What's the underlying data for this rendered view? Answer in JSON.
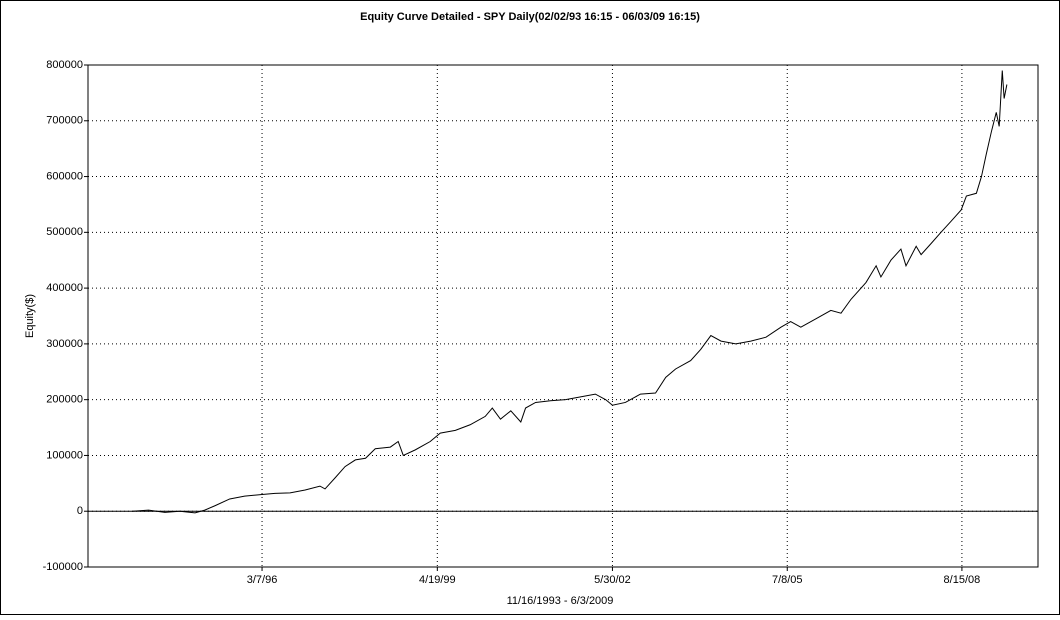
{
  "chart_data": {
    "type": "line",
    "title": "Equity Curve Detailed - SPY Daily(02/02/93 16:15 - 06/03/09 16:15)",
    "x_label": "11/16/1993 - 6/3/2009",
    "y_label": "Equity($)",
    "color": "#000000",
    "grid": true,
    "xlim": [
      "1993-02-01",
      "2009-12-22"
    ],
    "xticks": [
      {
        "value": "1996-03-07",
        "label": "3/7/96"
      },
      {
        "value": "1999-04-19",
        "label": "4/19/99"
      },
      {
        "value": "2002-05-30",
        "label": "5/30/02"
      },
      {
        "value": "2005-07-08",
        "label": "7/8/05"
      },
      {
        "value": "2008-08-15",
        "label": "8/15/08"
      }
    ],
    "ylim": [
      -100000,
      800000
    ],
    "yticks": [
      -100000,
      0,
      100000,
      200000,
      300000,
      400000,
      500000,
      600000,
      700000,
      800000
    ],
    "x": [
      "1993-11-16",
      "1994-03-01",
      "1994-06-15",
      "1994-09-20",
      "1994-12-28",
      "1995-03-01",
      "1995-05-08",
      "1995-08-10",
      "1995-11-15",
      "1996-03-07",
      "1996-05-30",
      "1996-09-05",
      "1996-12-12",
      "1997-03-18",
      "1997-04-20",
      "1997-06-25",
      "1997-08-28",
      "1997-11-03",
      "1998-01-08",
      "1998-03-12",
      "1998-06-18",
      "1998-08-08",
      "1998-09-10",
      "1998-11-27",
      "1999-03-04",
      "1999-05-08",
      "1999-08-14",
      "1999-11-18",
      "2000-02-24",
      "2000-04-10",
      "2000-06-02",
      "2000-08-08",
      "2000-10-12",
      "2000-11-12",
      "2001-01-16",
      "2001-04-22",
      "2001-07-30",
      "2001-11-04",
      "2002-02-08",
      "2002-04-16",
      "2002-05-30",
      "2002-08-22",
      "2002-11-28",
      "2003-03-06",
      "2003-05-11",
      "2003-07-14",
      "2003-10-20",
      "2003-12-24",
      "2004-02-28",
      "2004-05-04",
      "2004-08-08",
      "2004-11-13",
      "2005-02-20",
      "2005-05-28",
      "2005-07-30",
      "2005-10-04",
      "2006-01-10",
      "2006-04-17",
      "2006-06-22",
      "2006-08-26",
      "2006-12-01",
      "2007-02-05",
      "2007-03-08",
      "2007-05-12",
      "2007-07-16",
      "2007-08-18",
      "2007-10-23",
      "2007-11-24",
      "2008-01-28",
      "2008-04-01",
      "2008-06-06",
      "2008-08-10",
      "2008-09-13",
      "2008-11-17",
      "2008-12-20",
      "2009-01-20",
      "2009-02-22",
      "2009-03-26",
      "2009-04-14",
      "2009-05-04",
      "2009-05-16",
      "2009-06-03"
    ],
    "values": [
      0,
      2000,
      -2000,
      0,
      -3000,
      2000,
      10000,
      22000,
      27000,
      30000,
      32000,
      33000,
      38000,
      45000,
      40000,
      60000,
      80000,
      92000,
      95000,
      112000,
      115000,
      125000,
      100000,
      110000,
      125000,
      140000,
      145000,
      155000,
      170000,
      185000,
      165000,
      180000,
      160000,
      185000,
      195000,
      198000,
      200000,
      205000,
      210000,
      200000,
      190000,
      195000,
      210000,
      212000,
      240000,
      255000,
      270000,
      290000,
      315000,
      305000,
      300000,
      305000,
      312000,
      330000,
      340000,
      330000,
      345000,
      360000,
      355000,
      380000,
      410000,
      440000,
      420000,
      450000,
      470000,
      440000,
      475000,
      460000,
      480000,
      500000,
      520000,
      540000,
      565000,
      570000,
      600000,
      640000,
      680000,
      715000,
      690000,
      790000,
      740000,
      765000
    ]
  }
}
